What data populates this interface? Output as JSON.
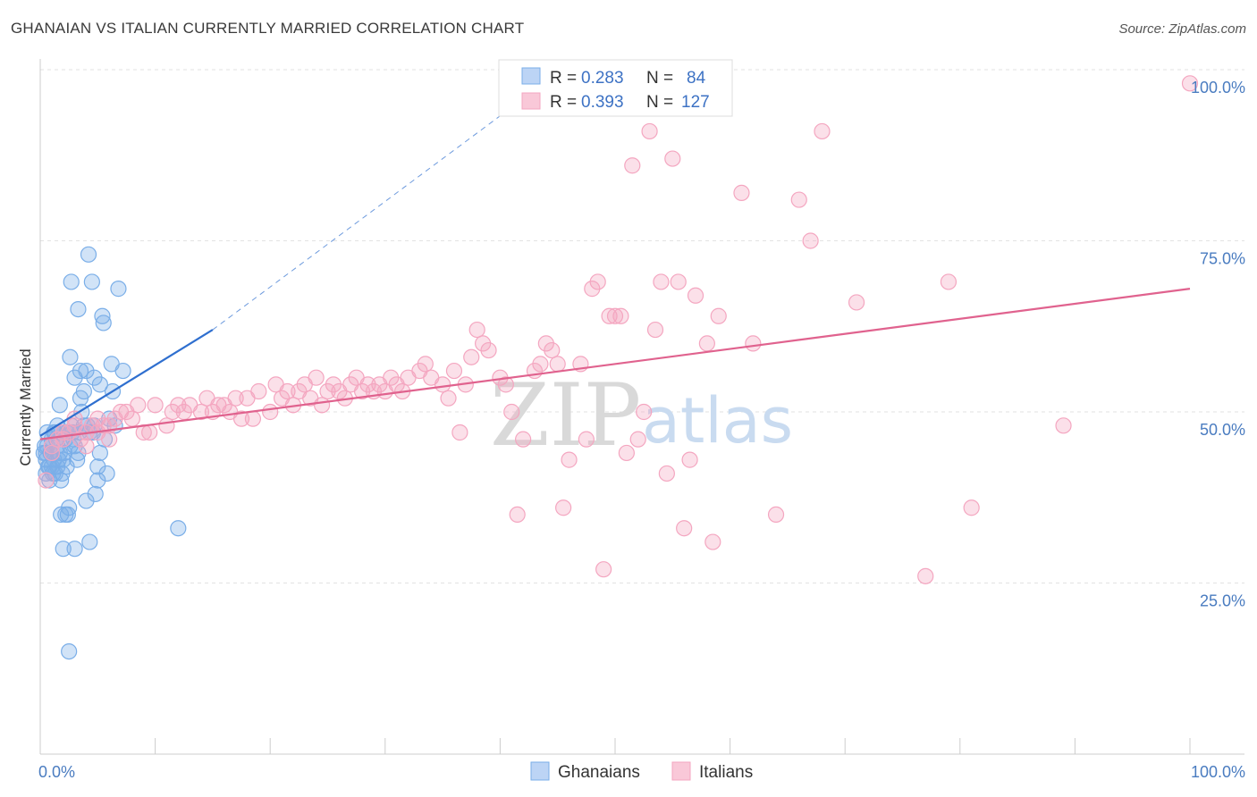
{
  "title": "GHANAIAN VS ITALIAN CURRENTLY MARRIED CORRELATION CHART",
  "source": "Source: ZipAtlas.com",
  "watermark": {
    "zip": "ZIP",
    "atlas": "atlas"
  },
  "chart_data": {
    "type": "scatter",
    "title": "GHANAIAN VS ITALIAN CURRENTLY MARRIED CORRELATION CHART",
    "xlabel": "",
    "ylabel": "Currently Married",
    "xlim": [
      0,
      100
    ],
    "ylim": [
      0,
      105
    ],
    "x_tick_labels": [
      "0.0%",
      "100.0%"
    ],
    "y_ticks": [
      25,
      50,
      75,
      100
    ],
    "y_tick_labels": [
      "25.0%",
      "50.0%",
      "75.0%",
      "100.0%"
    ],
    "grid": true,
    "legend_position": "bottom-center",
    "stats_legend": [
      {
        "series": "Ghanaians",
        "r_label": "R =",
        "r": "0.283",
        "n_label": "N =",
        "n": "84"
      },
      {
        "series": "Italians",
        "r_label": "R =",
        "r": "0.393",
        "n_label": "N =",
        "n": "127"
      }
    ],
    "series": [
      {
        "name": "Ghanaians",
        "color": "#7aaee8",
        "line_color": "#2f6fcf",
        "trend": {
          "x0": 0,
          "y0": 46.5,
          "x1": 15,
          "y1": 62,
          "dashed_to_x": 43,
          "dashed_to_y": 97
        },
        "points": [
          [
            0.3,
            44
          ],
          [
            0.5,
            43
          ],
          [
            0.5,
            41
          ],
          [
            0.6,
            45
          ],
          [
            0.8,
            42
          ],
          [
            0.8,
            40
          ],
          [
            1,
            44
          ],
          [
            1,
            46
          ],
          [
            1.2,
            43
          ],
          [
            1.2,
            47
          ],
          [
            1.3,
            41
          ],
          [
            1.5,
            45
          ],
          [
            1.5,
            42
          ],
          [
            1.5,
            48
          ],
          [
            1.7,
            51
          ],
          [
            1.7,
            44
          ],
          [
            1.8,
            40
          ],
          [
            1.8,
            35
          ],
          [
            2,
            47
          ],
          [
            2,
            43
          ],
          [
            2,
            30
          ],
          [
            2.2,
            46
          ],
          [
            2.2,
            35
          ],
          [
            2.3,
            42
          ],
          [
            2.4,
            35
          ],
          [
            2.5,
            36
          ],
          [
            2.5,
            15
          ],
          [
            2.6,
            58
          ],
          [
            2.7,
            69
          ],
          [
            2.7,
            48
          ],
          [
            2.8,
            47
          ],
          [
            3,
            45
          ],
          [
            3,
            55
          ],
          [
            3,
            30
          ],
          [
            3.2,
            43
          ],
          [
            3.3,
            44
          ],
          [
            3.3,
            65
          ],
          [
            3.5,
            56
          ],
          [
            3.5,
            52
          ],
          [
            3.6,
            50
          ],
          [
            3.8,
            53
          ],
          [
            3.8,
            48
          ],
          [
            4,
            56
          ],
          [
            4,
            37
          ],
          [
            4.2,
            73
          ],
          [
            4.3,
            31
          ],
          [
            4.3,
            47
          ],
          [
            4.5,
            69
          ],
          [
            4.7,
            55
          ],
          [
            4.7,
            48
          ],
          [
            4.8,
            38
          ],
          [
            5,
            42
          ],
          [
            5,
            40
          ],
          [
            5.2,
            44
          ],
          [
            5.2,
            54
          ],
          [
            5.4,
            64
          ],
          [
            5.5,
            63
          ],
          [
            5.8,
            41
          ],
          [
            6,
            49
          ],
          [
            6.2,
            57
          ],
          [
            6.3,
            53
          ],
          [
            6.5,
            48
          ],
          [
            6.8,
            68
          ],
          [
            7.2,
            56
          ],
          [
            12,
            33
          ],
          [
            0.4,
            45
          ],
          [
            0.6,
            47
          ],
          [
            0.9,
            44
          ],
          [
            1.1,
            41
          ],
          [
            1.4,
            46
          ],
          [
            1.6,
            43
          ],
          [
            2.1,
            44
          ],
          [
            2.9,
            46
          ],
          [
            3.4,
            47
          ],
          [
            0.7,
            42
          ],
          [
            1.9,
            41
          ],
          [
            2.3,
            47
          ],
          [
            4.1,
            48
          ],
          [
            4.6,
            47
          ],
          [
            5.6,
            46
          ],
          [
            0.5,
            44
          ],
          [
            1,
            42
          ],
          [
            1.3,
            47
          ],
          [
            2.6,
            45
          ]
        ]
      },
      {
        "name": "Italians",
        "color": "#f4a6c0",
        "line_color": "#e0628e",
        "trend": {
          "x0": 0,
          "y0": 46,
          "x1": 100,
          "y1": 68
        },
        "points": [
          [
            0.5,
            40
          ],
          [
            1,
            44
          ],
          [
            1.5,
            46
          ],
          [
            2,
            46
          ],
          [
            2.5,
            47
          ],
          [
            3,
            48
          ],
          [
            3.5,
            46
          ],
          [
            4,
            47
          ],
          [
            4.5,
            48
          ],
          [
            5,
            49
          ],
          [
            5.5,
            48
          ],
          [
            6,
            48
          ],
          [
            7,
            50
          ],
          [
            7.5,
            50
          ],
          [
            8,
            49
          ],
          [
            9,
            47
          ],
          [
            9.5,
            47
          ],
          [
            10,
            51
          ],
          [
            11,
            48
          ],
          [
            11.5,
            50
          ],
          [
            12,
            51
          ],
          [
            12.5,
            50
          ],
          [
            13,
            51
          ],
          [
            14,
            50
          ],
          [
            14.5,
            52
          ],
          [
            15,
            50
          ],
          [
            15.5,
            51
          ],
          [
            16,
            51
          ],
          [
            16.5,
            50
          ],
          [
            17,
            52
          ],
          [
            17.5,
            49
          ],
          [
            18,
            52
          ],
          [
            18.5,
            49
          ],
          [
            19,
            53
          ],
          [
            20,
            50
          ],
          [
            20.5,
            54
          ],
          [
            21,
            52
          ],
          [
            21.5,
            53
          ],
          [
            22,
            51
          ],
          [
            22.5,
            53
          ],
          [
            23,
            54
          ],
          [
            23.5,
            52
          ],
          [
            24,
            55
          ],
          [
            24.5,
            51
          ],
          [
            25,
            53
          ],
          [
            25.5,
            54
          ],
          [
            26,
            53
          ],
          [
            26.5,
            52
          ],
          [
            27,
            54
          ],
          [
            27.5,
            55
          ],
          [
            28,
            53
          ],
          [
            28.5,
            54
          ],
          [
            29,
            53
          ],
          [
            29.5,
            54
          ],
          [
            30,
            53
          ],
          [
            30.5,
            55
          ],
          [
            31,
            54
          ],
          [
            31.5,
            53
          ],
          [
            32,
            55
          ],
          [
            33,
            56
          ],
          [
            33.5,
            57
          ],
          [
            34,
            55
          ],
          [
            35,
            54
          ],
          [
            35.5,
            52
          ],
          [
            36,
            56
          ],
          [
            36.5,
            47
          ],
          [
            37,
            54
          ],
          [
            37.5,
            58
          ],
          [
            38,
            62
          ],
          [
            38.5,
            60
          ],
          [
            39,
            59
          ],
          [
            40,
            55
          ],
          [
            40.5,
            54
          ],
          [
            41,
            50
          ],
          [
            41.5,
            35
          ],
          [
            42,
            46
          ],
          [
            43,
            56
          ],
          [
            43.5,
            57
          ],
          [
            44,
            60
          ],
          [
            44.5,
            59
          ],
          [
            45,
            57
          ],
          [
            45.5,
            36
          ],
          [
            46,
            43
          ],
          [
            47,
            57
          ],
          [
            47.5,
            46
          ],
          [
            48,
            68
          ],
          [
            48.5,
            69
          ],
          [
            49,
            27
          ],
          [
            49.5,
            64
          ],
          [
            50,
            64
          ],
          [
            50.5,
            64
          ],
          [
            51,
            44
          ],
          [
            51.5,
            86
          ],
          [
            52,
            46
          ],
          [
            52.5,
            50
          ],
          [
            53,
            91
          ],
          [
            53.5,
            62
          ],
          [
            54,
            69
          ],
          [
            54.5,
            41
          ],
          [
            55,
            87
          ],
          [
            55.5,
            69
          ],
          [
            56,
            33
          ],
          [
            56.5,
            43
          ],
          [
            57,
            67
          ],
          [
            58,
            60
          ],
          [
            58.5,
            31
          ],
          [
            59,
            64
          ],
          [
            61,
            82
          ],
          [
            62,
            60
          ],
          [
            64,
            35
          ],
          [
            66,
            81
          ],
          [
            67,
            75
          ],
          [
            68,
            91
          ],
          [
            71,
            66
          ],
          [
            77,
            26
          ],
          [
            79,
            69
          ],
          [
            81,
            36
          ],
          [
            89,
            48
          ],
          [
            100,
            98
          ],
          [
            3,
            49
          ],
          [
            5,
            47
          ],
          [
            6.5,
            49
          ],
          [
            8.5,
            51
          ],
          [
            2,
            47
          ],
          [
            4,
            45
          ],
          [
            6,
            46
          ],
          [
            1,
            45
          ]
        ]
      }
    ]
  }
}
